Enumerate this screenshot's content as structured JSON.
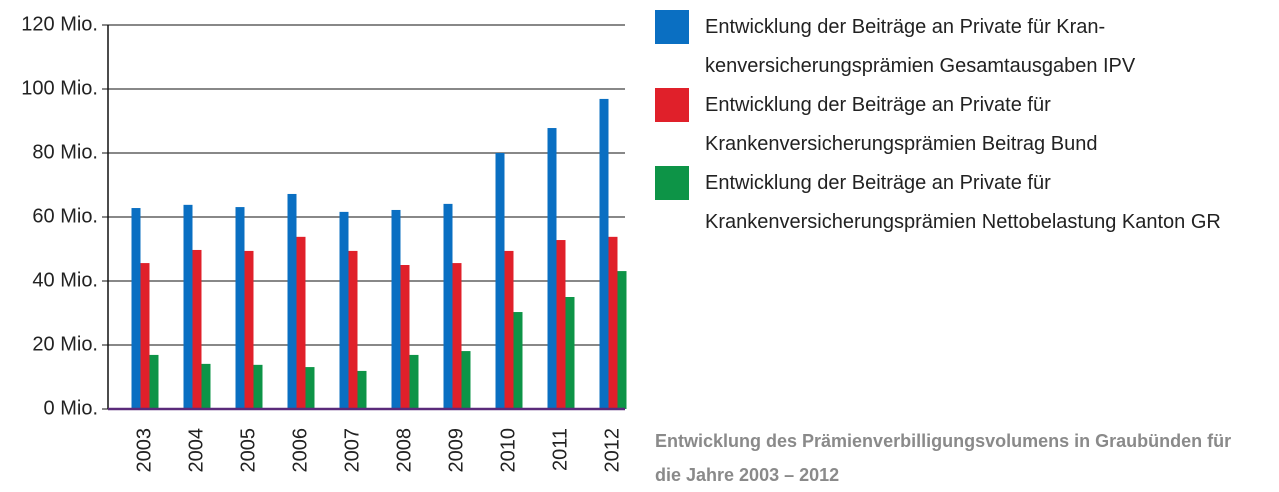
{
  "chart_data": {
    "type": "bar",
    "title": "Entwicklung des Prämienverbilligungsvolumens in Graubünden für die Jahre 2003 – 2012",
    "categories": [
      "2003",
      "2004",
      "2005",
      "2006",
      "2007",
      "2008",
      "2009",
      "2010",
      "2011",
      "2012"
    ],
    "series": [
      {
        "name": "Entwicklung der Beiträge an Private für Kran­kenversicherungsprämien Gesamtausgaben IPV",
        "color": "#0a6fc2",
        "values": [
          62.8,
          63.8,
          63.1,
          67.2,
          61.6,
          62.2,
          64.1,
          80.0,
          87.8,
          96.9
        ]
      },
      {
        "name": "Entwicklung der Beiträge an Private für Krankenversicherungsprämien Beitrag Bund",
        "color": "#e0202a",
        "values": [
          45.6,
          49.7,
          49.4,
          53.8,
          49.4,
          45.0,
          45.6,
          49.4,
          52.8,
          53.8
        ]
      },
      {
        "name": "Entwicklung der Beiträge an Private für Krankenversicherungsprämien Nettobelastung Kanton GR",
        "color": "#0d9447",
        "values": [
          16.9,
          14.1,
          13.8,
          13.1,
          11.9,
          16.9,
          18.1,
          30.3,
          35.0,
          43.1
        ]
      }
    ],
    "ylim": [
      0,
      120
    ],
    "yticks": [
      {
        "value": 0,
        "label": "0 Mio."
      },
      {
        "value": 20,
        "label": "20 Mio."
      },
      {
        "value": 40,
        "label": "40 Mio."
      },
      {
        "value": 60,
        "label": "60 Mio."
      },
      {
        "value": 80,
        "label": "80 Mio."
      },
      {
        "value": 100,
        "label": "100 Mio."
      },
      {
        "value": 120,
        "label": "120 Mio."
      }
    ],
    "grid": true
  }
}
